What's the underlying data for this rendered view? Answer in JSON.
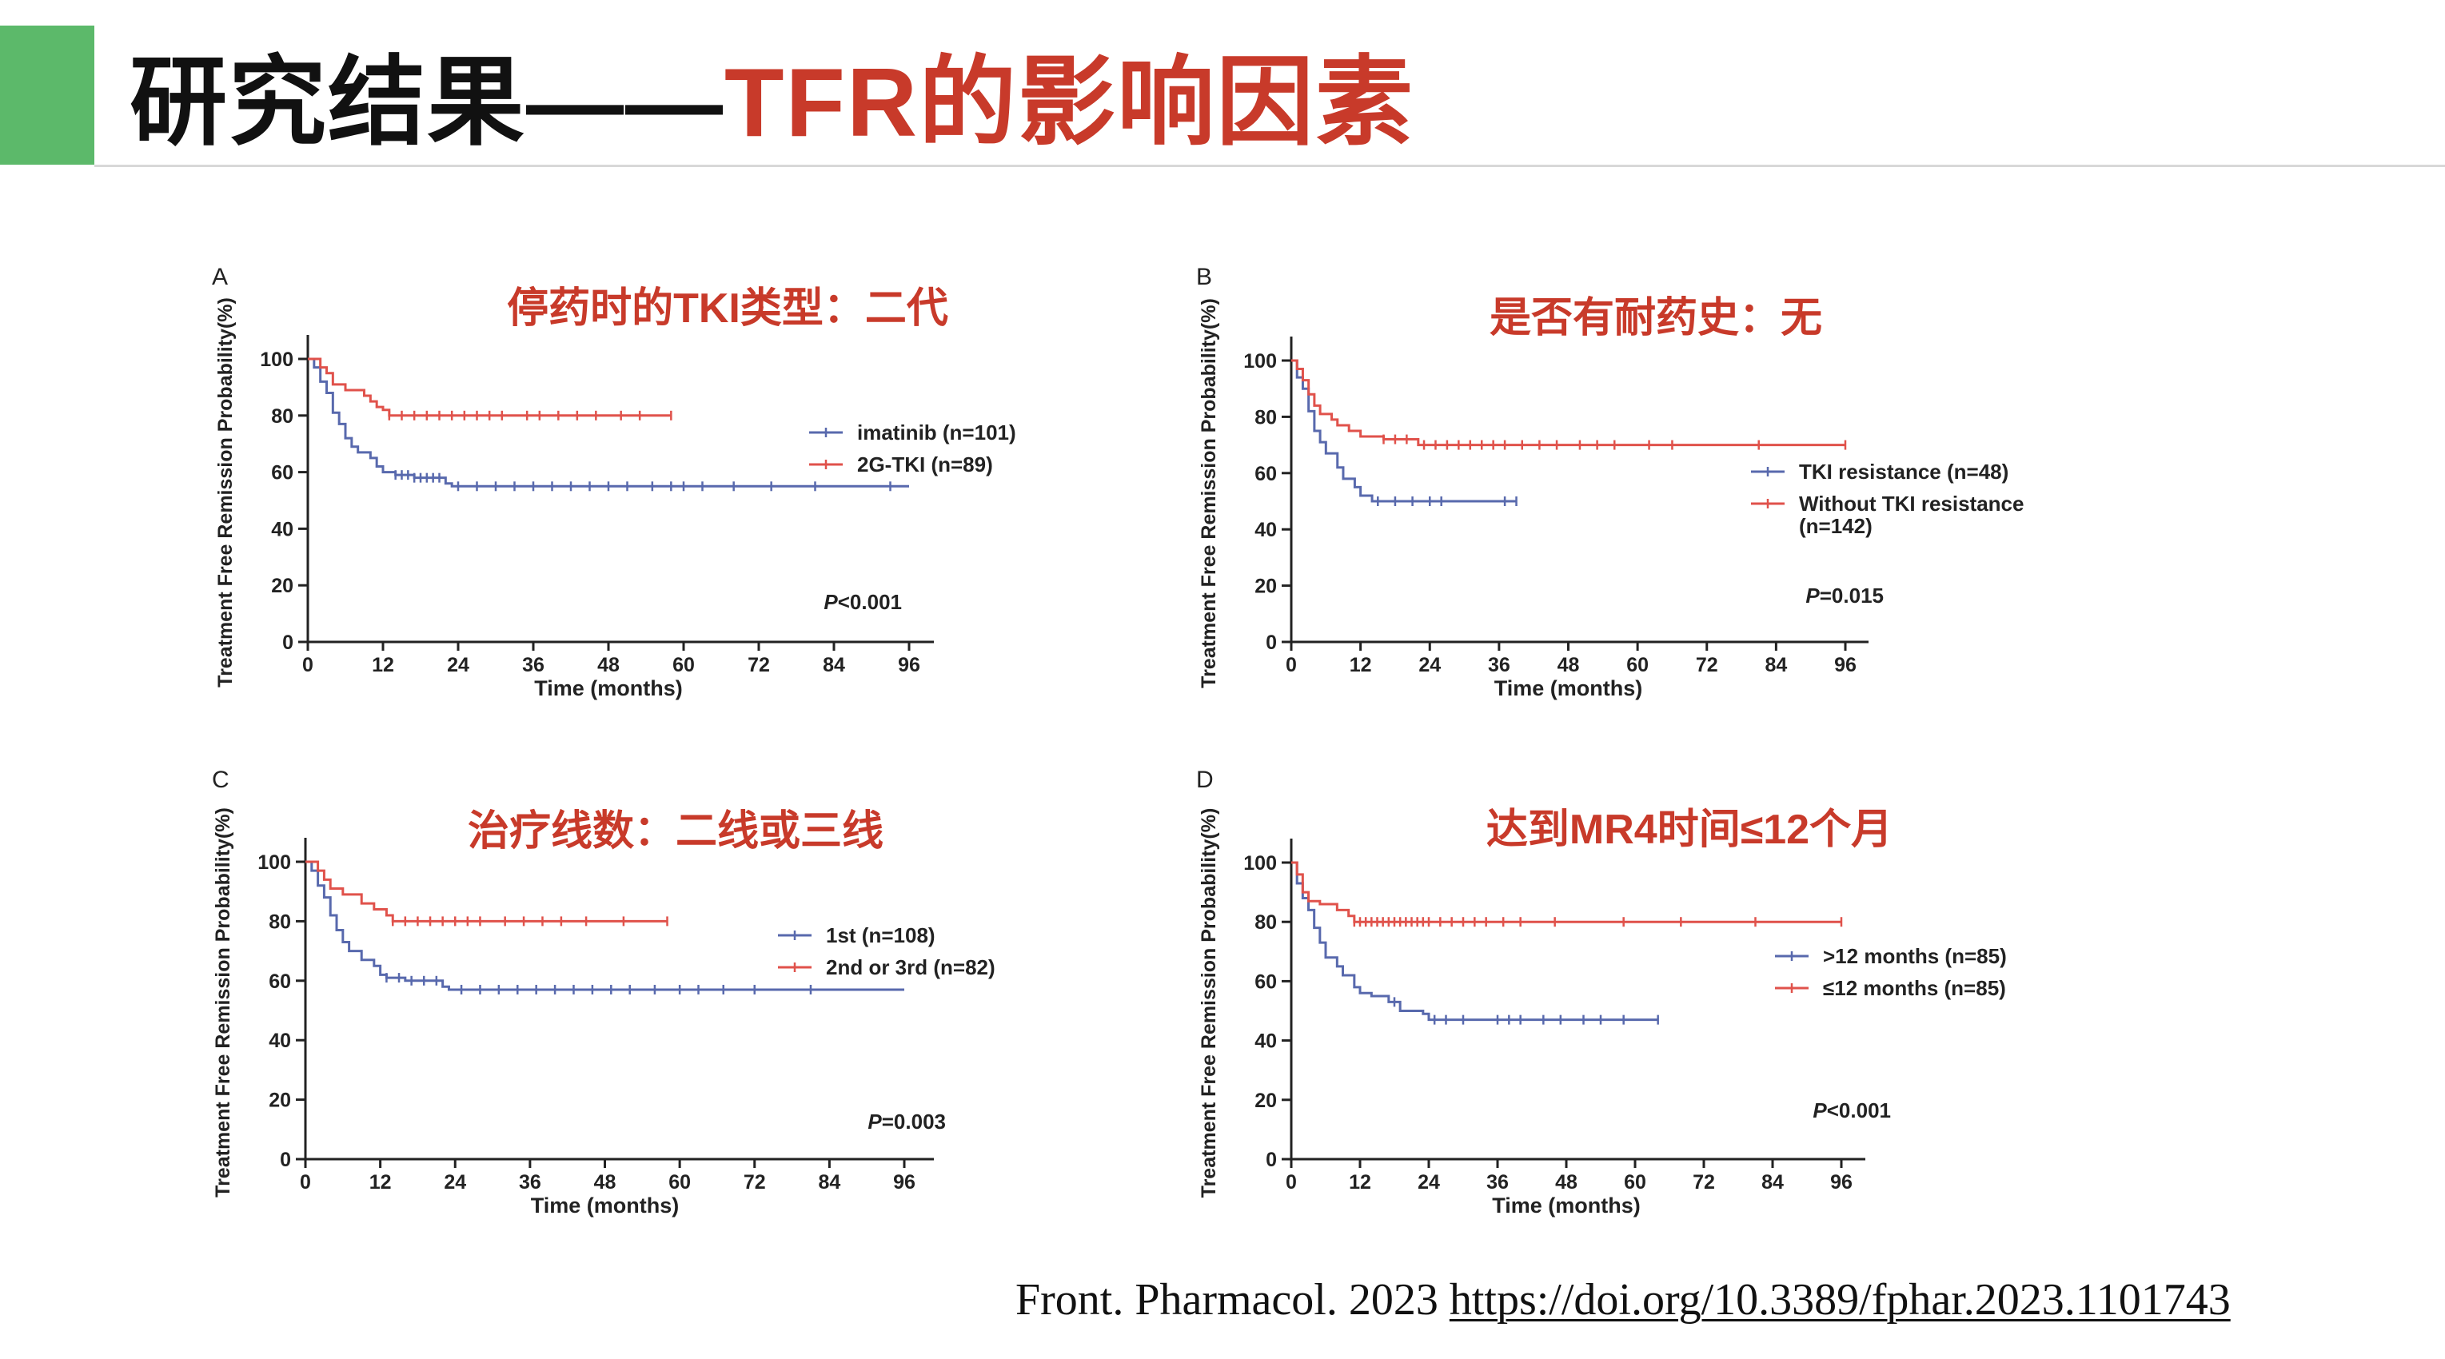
{
  "slide": {
    "title_black": "研究结果——",
    "title_red": "TFR的影响因素",
    "citation_text": "Front. Pharmacol. 2023 ",
    "citation_link": "https://doi.org/10.3389/fphar.2023.1101743"
  },
  "colors": {
    "accent": "#5cb96a",
    "red": "#c83a2a",
    "series_red": "#e0524b",
    "series_blue": "#5869ad"
  },
  "chart_data": [
    {
      "type": "line",
      "panel": "A",
      "annotation": "停药时的TKI类型：二代",
      "xlabel": "Time (months)",
      "ylabel": "Treatment Free Remission Probability(%)",
      "xticks": [
        "0",
        "12",
        "24",
        "36",
        "48",
        "60",
        "72",
        "84",
        "96"
      ],
      "yticks": [
        "0",
        "20",
        "40",
        "60",
        "80",
        "100"
      ],
      "xlim": [
        0,
        96
      ],
      "ylim": [
        0,
        100
      ],
      "pvalue_prefix": "P",
      "pvalue_rest": "<0.001",
      "legend_position": "right",
      "series": [
        {
          "name": "imatinib (n=101)",
          "color": "#5869ad",
          "steps": [
            [
              0,
              100
            ],
            [
              1,
              97
            ],
            [
              2,
              92
            ],
            [
              3,
              88
            ],
            [
              4,
              81
            ],
            [
              5,
              77
            ],
            [
              6,
              72
            ],
            [
              7,
              69
            ],
            [
              8,
              67
            ],
            [
              10,
              65
            ],
            [
              11,
              62
            ],
            [
              12,
              60
            ],
            [
              14,
              59
            ],
            [
              17,
              58
            ],
            [
              22,
              56
            ],
            [
              23,
              55
            ],
            [
              96,
              55
            ]
          ],
          "censors": [
            14,
            15,
            16,
            17,
            18,
            19,
            20,
            21,
            24,
            27,
            30,
            33,
            36,
            39,
            42,
            45,
            48,
            51,
            55,
            58,
            60,
            63,
            68,
            74,
            81,
            93
          ]
        },
        {
          "name": "2G-TKI (n=89)",
          "color": "#e0524b",
          "steps": [
            [
              0,
              100
            ],
            [
              2,
              97
            ],
            [
              3,
              95
            ],
            [
              4,
              91
            ],
            [
              6,
              89
            ],
            [
              9,
              87
            ],
            [
              10,
              85
            ],
            [
              11,
              83
            ],
            [
              12,
              82
            ],
            [
              13,
              80
            ],
            [
              58,
              80
            ]
          ],
          "censors": [
            13,
            15,
            17,
            19,
            21,
            23,
            25,
            27,
            29,
            31,
            35,
            37,
            40,
            43,
            46,
            50,
            53,
            58
          ]
        }
      ]
    },
    {
      "type": "line",
      "panel": "B",
      "annotation": "是否有耐药史：无",
      "xlabel": "Time (months)",
      "ylabel": "Treatment Free Remission Probability(%)",
      "xticks": [
        "0",
        "12",
        "24",
        "36",
        "48",
        "60",
        "72",
        "84",
        "96"
      ],
      "yticks": [
        "0",
        "20",
        "40",
        "60",
        "80",
        "100"
      ],
      "xlim": [
        0,
        96
      ],
      "ylim": [
        0,
        100
      ],
      "pvalue_prefix": "P",
      "pvalue_rest": "=0.015",
      "legend_position": "right",
      "series": [
        {
          "name": "TKI resistance (n=48)",
          "color": "#5869ad",
          "steps": [
            [
              0,
              100
            ],
            [
              1,
              94
            ],
            [
              2,
              90
            ],
            [
              3,
              82
            ],
            [
              4,
              75
            ],
            [
              5,
              71
            ],
            [
              6,
              67
            ],
            [
              8,
              62
            ],
            [
              9,
              58
            ],
            [
              11,
              55
            ],
            [
              12,
              52
            ],
            [
              14,
              50
            ],
            [
              39,
              50
            ]
          ],
          "censors": [
            15,
            18,
            21,
            24,
            26,
            37,
            39
          ]
        },
        {
          "name": "Without TKI resistance\n(n=142)",
          "color": "#e0524b",
          "steps": [
            [
              0,
              100
            ],
            [
              1,
              97
            ],
            [
              2,
              93
            ],
            [
              3,
              88
            ],
            [
              4,
              84
            ],
            [
              5,
              81
            ],
            [
              7,
              79
            ],
            [
              8,
              77
            ],
            [
              10,
              75
            ],
            [
              12,
              73
            ],
            [
              16,
              72
            ],
            [
              22,
              70
            ],
            [
              96,
              70
            ]
          ],
          "censors": [
            16,
            18,
            20,
            23,
            25,
            27,
            29,
            31,
            33,
            35,
            37,
            40,
            43,
            46,
            50,
            53,
            56,
            62,
            66,
            81,
            96
          ]
        }
      ]
    },
    {
      "type": "line",
      "panel": "C",
      "annotation": "治疗线数：二线或三线",
      "xlabel": "Time (months)",
      "ylabel": "Treatment Free Remission Probability(%)",
      "xticks": [
        "0",
        "12",
        "24",
        "36",
        "48",
        "60",
        "72",
        "84",
        "96"
      ],
      "yticks": [
        "0",
        "20",
        "40",
        "60",
        "80",
        "100"
      ],
      "xlim": [
        0,
        96
      ],
      "ylim": [
        0,
        100
      ],
      "pvalue_prefix": "P",
      "pvalue_rest": "=0.003",
      "legend_position": "right",
      "series": [
        {
          "name": "1st (n=108)",
          "color": "#5869ad",
          "steps": [
            [
              0,
              100
            ],
            [
              1,
              97
            ],
            [
              2,
              92
            ],
            [
              3,
              88
            ],
            [
              4,
              82
            ],
            [
              5,
              77
            ],
            [
              6,
              73
            ],
            [
              7,
              70
            ],
            [
              9,
              67
            ],
            [
              11,
              65
            ],
            [
              12,
              62
            ],
            [
              13,
              61
            ],
            [
              16,
              60
            ],
            [
              22,
              58
            ],
            [
              23,
              57
            ],
            [
              96,
              57
            ]
          ],
          "censors": [
            13,
            15,
            17,
            19,
            21,
            25,
            28,
            31,
            34,
            37,
            40,
            43,
            46,
            49,
            52,
            56,
            60,
            63,
            67,
            72,
            81
          ]
        },
        {
          "name": "2nd or 3rd (n=82)",
          "color": "#e0524b",
          "steps": [
            [
              0,
              100
            ],
            [
              2,
              97
            ],
            [
              3,
              94
            ],
            [
              4,
              91
            ],
            [
              6,
              89
            ],
            [
              9,
              86
            ],
            [
              11,
              84
            ],
            [
              13,
              82
            ],
            [
              14,
              80
            ],
            [
              58,
              80
            ]
          ],
          "censors": [
            14,
            16,
            18,
            20,
            22,
            24,
            26,
            28,
            32,
            35,
            38,
            41,
            45,
            51,
            58
          ]
        }
      ]
    },
    {
      "type": "line",
      "panel": "D",
      "annotation": "达到MR4时间≤12个月",
      "xlabel": "Time (months)",
      "ylabel": "Treatment Free Remission Probability(%)",
      "xticks": [
        "0",
        "12",
        "24",
        "36",
        "48",
        "60",
        "72",
        "84",
        "96"
      ],
      "yticks": [
        "0",
        "20",
        "40",
        "60",
        "80",
        "100"
      ],
      "xlim": [
        0,
        96
      ],
      "ylim": [
        0,
        100
      ],
      "pvalue_prefix": "P",
      "pvalue_rest": "<0.001",
      "legend_position": "right",
      "series": [
        {
          "name": ">12 months (n=85)",
          "color": "#5869ad",
          "steps": [
            [
              0,
              100
            ],
            [
              1,
              93
            ],
            [
              2,
              88
            ],
            [
              3,
              84
            ],
            [
              4,
              78
            ],
            [
              5,
              73
            ],
            [
              6,
              68
            ],
            [
              8,
              65
            ],
            [
              9,
              62
            ],
            [
              11,
              58
            ],
            [
              12,
              56
            ],
            [
              14,
              55
            ],
            [
              17,
              53
            ],
            [
              19,
              50
            ],
            [
              23,
              49
            ],
            [
              24,
              47
            ],
            [
              64,
              47
            ]
          ],
          "censors": [
            18,
            25,
            27,
            30,
            36,
            38,
            40,
            44,
            47,
            51,
            54,
            58,
            64
          ]
        },
        {
          "name": "≤12 months (n=85)",
          "color": "#e0524b",
          "steps": [
            [
              0,
              100
            ],
            [
              1,
              96
            ],
            [
              2,
              90
            ],
            [
              3,
              87
            ],
            [
              5,
              86
            ],
            [
              8,
              84
            ],
            [
              10,
              82
            ],
            [
              11,
              80
            ],
            [
              96,
              80
            ]
          ],
          "censors": [
            11,
            12,
            13,
            14,
            15,
            16,
            17,
            18,
            19,
            20,
            21,
            22,
            23,
            24,
            26,
            28,
            30,
            32,
            34,
            37,
            40,
            46,
            58,
            68,
            81,
            96
          ]
        }
      ]
    }
  ]
}
